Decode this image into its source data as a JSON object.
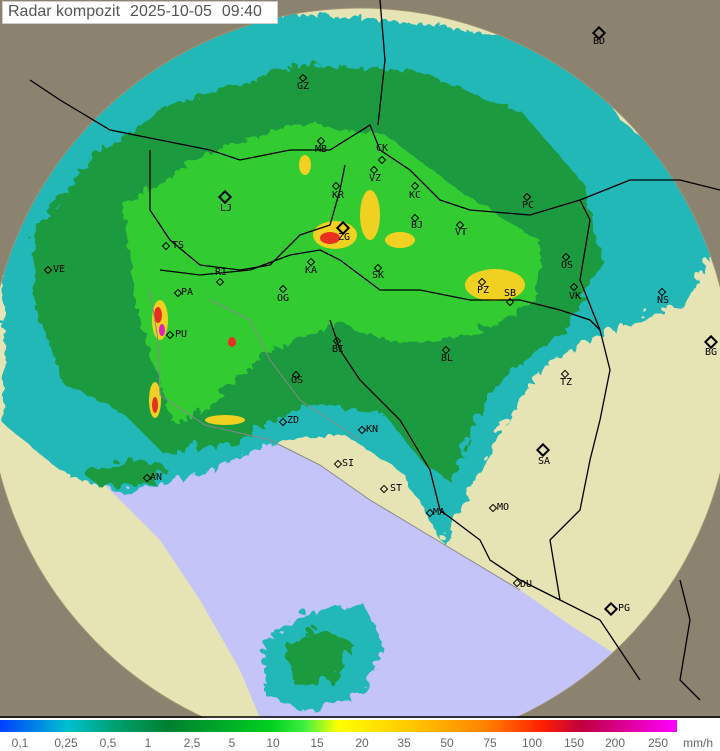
{
  "header": {
    "title": "Radar kompozit",
    "date": "2025-10-05",
    "time": "09:40"
  },
  "cities": [
    "GZ",
    "BD",
    "MB",
    "CK",
    "VZ",
    "KR",
    "KC",
    "LJ",
    "BJ",
    "ZG",
    "VT",
    "PC",
    "TS",
    "VE",
    "RI",
    "KA",
    "SK",
    "OS",
    "PA",
    "OG",
    "PZ",
    "SB",
    "VK",
    "NS",
    "BG",
    "PU",
    "BI",
    "BL",
    "TZ",
    "GS",
    "ZD",
    "KN",
    "SA",
    "SI",
    "AN",
    "ST",
    "MO",
    "MA",
    "DU",
    "PG"
  ],
  "legend": {
    "unit": "mm/h",
    "ticks": [
      "0,1",
      "0,25",
      "0,5",
      "1",
      "2,5",
      "5",
      "10",
      "15",
      "20",
      "35",
      "50",
      "75",
      "100",
      "150",
      "200",
      "250"
    ]
  },
  "colors": {
    "sea": "#c4c4f8",
    "land": "#e6e4b4",
    "outside": "#8c8270",
    "border": "#000000"
  }
}
